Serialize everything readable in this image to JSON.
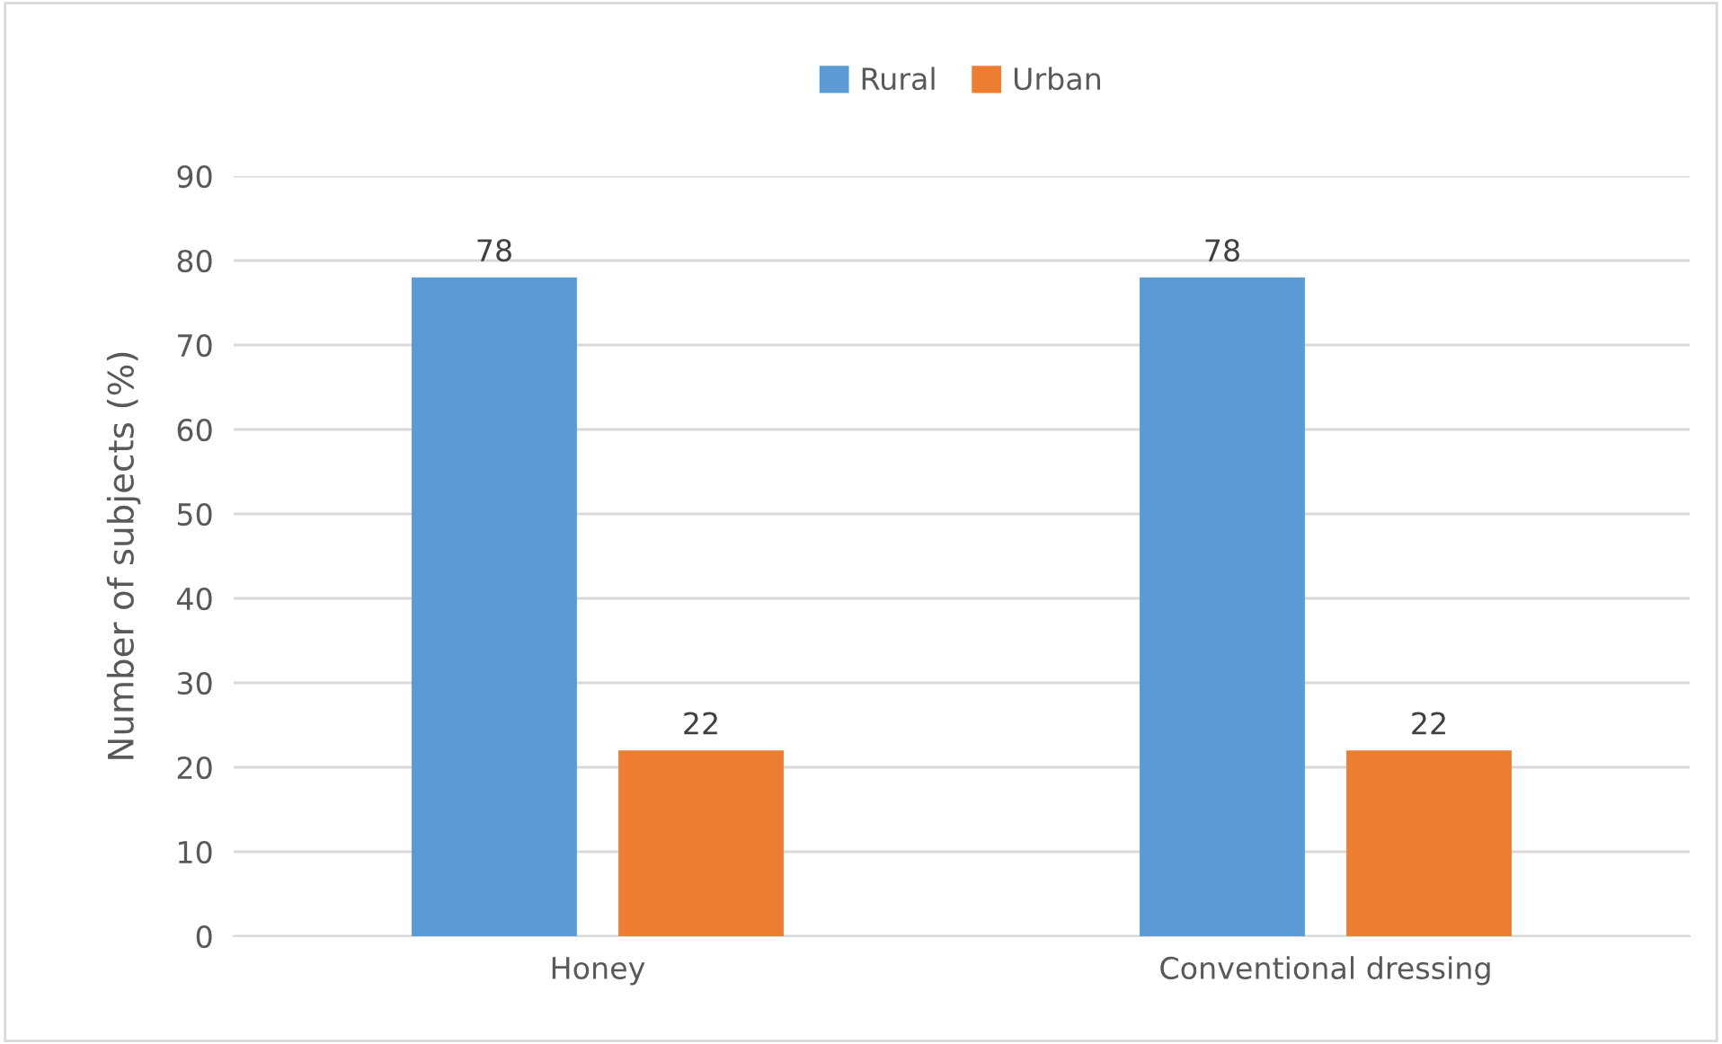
{
  "chart_data": {
    "type": "bar",
    "categories": [
      "Honey",
      "Conventional dressing"
    ],
    "series": [
      {
        "name": "Rural",
        "color": "#5b9bd5",
        "values": [
          78,
          78
        ]
      },
      {
        "name": "Urban",
        "color": "#ed7d31",
        "values": [
          22,
          22
        ]
      }
    ],
    "ylabel": "Number of subjects (%)",
    "ylim": [
      0,
      90
    ],
    "yticks": [
      0,
      10,
      20,
      30,
      40,
      50,
      60,
      70,
      80,
      90
    ],
    "grid": "y",
    "legend": "top",
    "data_labels": true
  }
}
